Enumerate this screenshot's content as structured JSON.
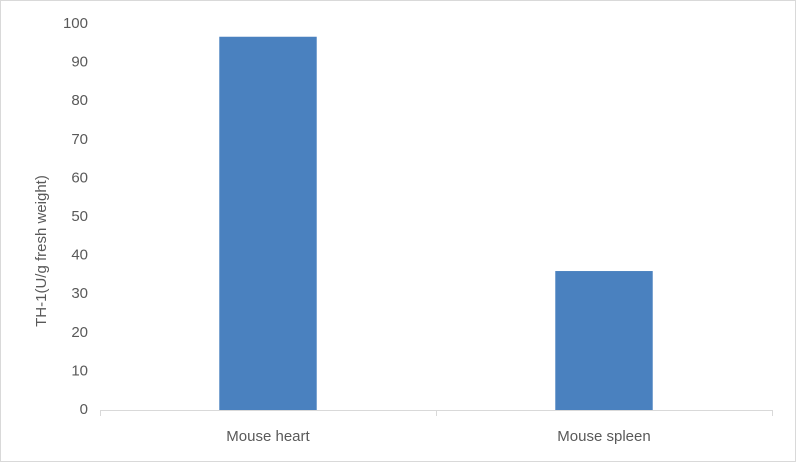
{
  "chart_data": {
    "type": "bar",
    "y_label": "TH-1(U/g fresh weight)",
    "categories": [
      "Mouse heart",
      "Mouse spleen"
    ],
    "values": [
      96.7,
      36
    ],
    "color": "#4a81bf",
    "ylim": [
      0,
      100
    ],
    "yticks": [
      0,
      10,
      20,
      30,
      40,
      50,
      60,
      70,
      80,
      90,
      100
    ],
    "grid": false
  }
}
